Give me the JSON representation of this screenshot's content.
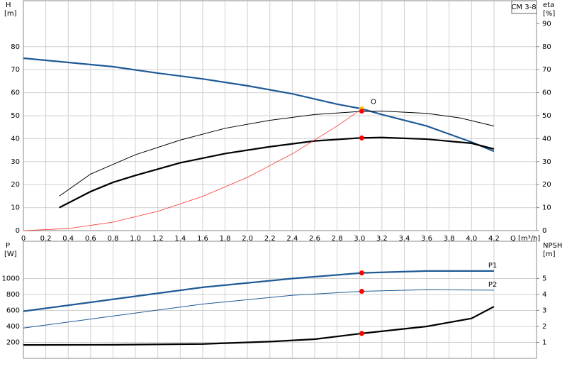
{
  "chart_data": [
    {
      "type": "line",
      "title": "CM 3-8",
      "x_label": "Q [m³/h]",
      "y_label": "H",
      "y_unit": "[m]",
      "y2_label": "eta",
      "y2_unit": "[%]",
      "xlim": [
        0,
        4.58
      ],
      "xticks": [
        0,
        0.2,
        0.4,
        0.6,
        0.8,
        {
          "value": 1,
          "label": "1.0"
        },
        1.2,
        1.4,
        1.6,
        1.8,
        {
          "value": 2,
          "label": "2.0"
        },
        2.2,
        2.4,
        2.6,
        2.8,
        {
          "value": 3,
          "label": "3.0"
        },
        3.2,
        3.4,
        3.6,
        3.8,
        {
          "value": 4,
          "label": "4.0"
        },
        4.2
      ],
      "ylim": [
        0,
        100
      ],
      "yticks": [
        0,
        10,
        20,
        30,
        40,
        50,
        60,
        70,
        80
      ],
      "y2lim": [
        0,
        100
      ],
      "y2ticks": [
        0,
        10,
        20,
        30,
        40,
        50,
        60,
        70,
        80,
        90
      ],
      "grid": true,
      "series": [
        {
          "color": "#1f5a96",
          "width": 2.2,
          "x": [
            0,
            0.8,
            1.2,
            1.6,
            2.0,
            2.4,
            2.8,
            3.02,
            3.2,
            3.6,
            4.0,
            4.2
          ],
          "values": [
            75,
            71.3,
            68.5,
            66,
            63,
            59.5,
            55,
            53,
            50.5,
            45.5,
            38.5,
            34.5
          ],
          "point": {
            "x": 3.02,
            "value": 53,
            "color": "#f5d000"
          }
        },
        {
          "color": "#000000",
          "width": 1,
          "x": [
            0.32,
            0.6,
            1.0,
            1.4,
            1.8,
            2.2,
            2.6,
            3.0,
            3.2,
            3.6,
            3.9,
            4.2
          ],
          "values": [
            15,
            24.6,
            33,
            39.4,
            44.5,
            48,
            50.5,
            51.8,
            52,
            51,
            49,
            45.5
          ],
          "point": {
            "x": 3.02,
            "value": 52,
            "color": "#ff0000"
          }
        },
        {
          "color": "#000000",
          "width": 2.2,
          "x": [
            0.32,
            0.6,
            0.8,
            1.0,
            1.4,
            1.8,
            2.2,
            2.6,
            3.0,
            3.2,
            3.6,
            4.0,
            4.2
          ],
          "values": [
            10,
            17,
            21,
            24,
            29.5,
            33.5,
            36.5,
            39,
            40.3,
            40.5,
            39.8,
            38,
            35.5
          ],
          "axis": "y2",
          "point": {
            "x": 3.02,
            "value": 40.3,
            "color": "#ff0000"
          }
        },
        {
          "color": "#ff3030",
          "width": 0.8,
          "x": [
            0,
            0.4,
            0.8,
            1.2,
            1.6,
            2.0,
            2.4,
            2.8,
            3.02
          ],
          "values": [
            0,
            0.9,
            3.7,
            8.4,
            14.9,
            23.2,
            33.4,
            45.5,
            52.9
          ]
        }
      ],
      "annotations": [
        {
          "text": "O",
          "x": 3.1,
          "y": 56,
          "color": "#ff3030"
        }
      ]
    },
    {
      "type": "line",
      "y_label": "P",
      "y_unit": "[W]",
      "y2_label": "NPSH",
      "y2_unit": "[m]",
      "xlim": [
        0,
        4.58
      ],
      "ylim": [
        0,
        1467
      ],
      "yticks": [
        200,
        400,
        600,
        800,
        1000
      ],
      "y2lim": [
        0,
        7.33
      ],
      "y2ticks": [
        1,
        2,
        3,
        4,
        5
      ],
      "grid": true,
      "series": [
        {
          "name": "P1",
          "color": "#1f5a96",
          "width": 2.2,
          "x": [
            0,
            0.8,
            1.6,
            2.4,
            3.02,
            3.6,
            4.2
          ],
          "values": [
            590,
            740,
            890,
            1000,
            1070,
            1095,
            1095
          ],
          "point": {
            "x": 3.02,
            "value": 1070,
            "color": "#ff0000"
          }
        },
        {
          "name": "P2",
          "color": "#1f5a96",
          "width": 1,
          "x": [
            0,
            0.8,
            1.6,
            2.4,
            3.02,
            3.6,
            4.2
          ],
          "values": [
            380,
            530,
            680,
            790,
            840,
            860,
            855
          ],
          "point": {
            "x": 3.02,
            "value": 840,
            "color": "#ff0000"
          }
        },
        {
          "color": "#000000",
          "width": 2.2,
          "axis": "y2",
          "x": [
            0,
            0.8,
            1.6,
            2.2,
            2.6,
            3.02,
            3.6,
            4.0,
            4.2
          ],
          "values": [
            0.84,
            0.85,
            0.9,
            1.05,
            1.2,
            1.56,
            2.0,
            2.5,
            3.24
          ],
          "point": {
            "x": 3.02,
            "value": 1.56,
            "color": "#ff0000"
          }
        }
      ]
    }
  ]
}
